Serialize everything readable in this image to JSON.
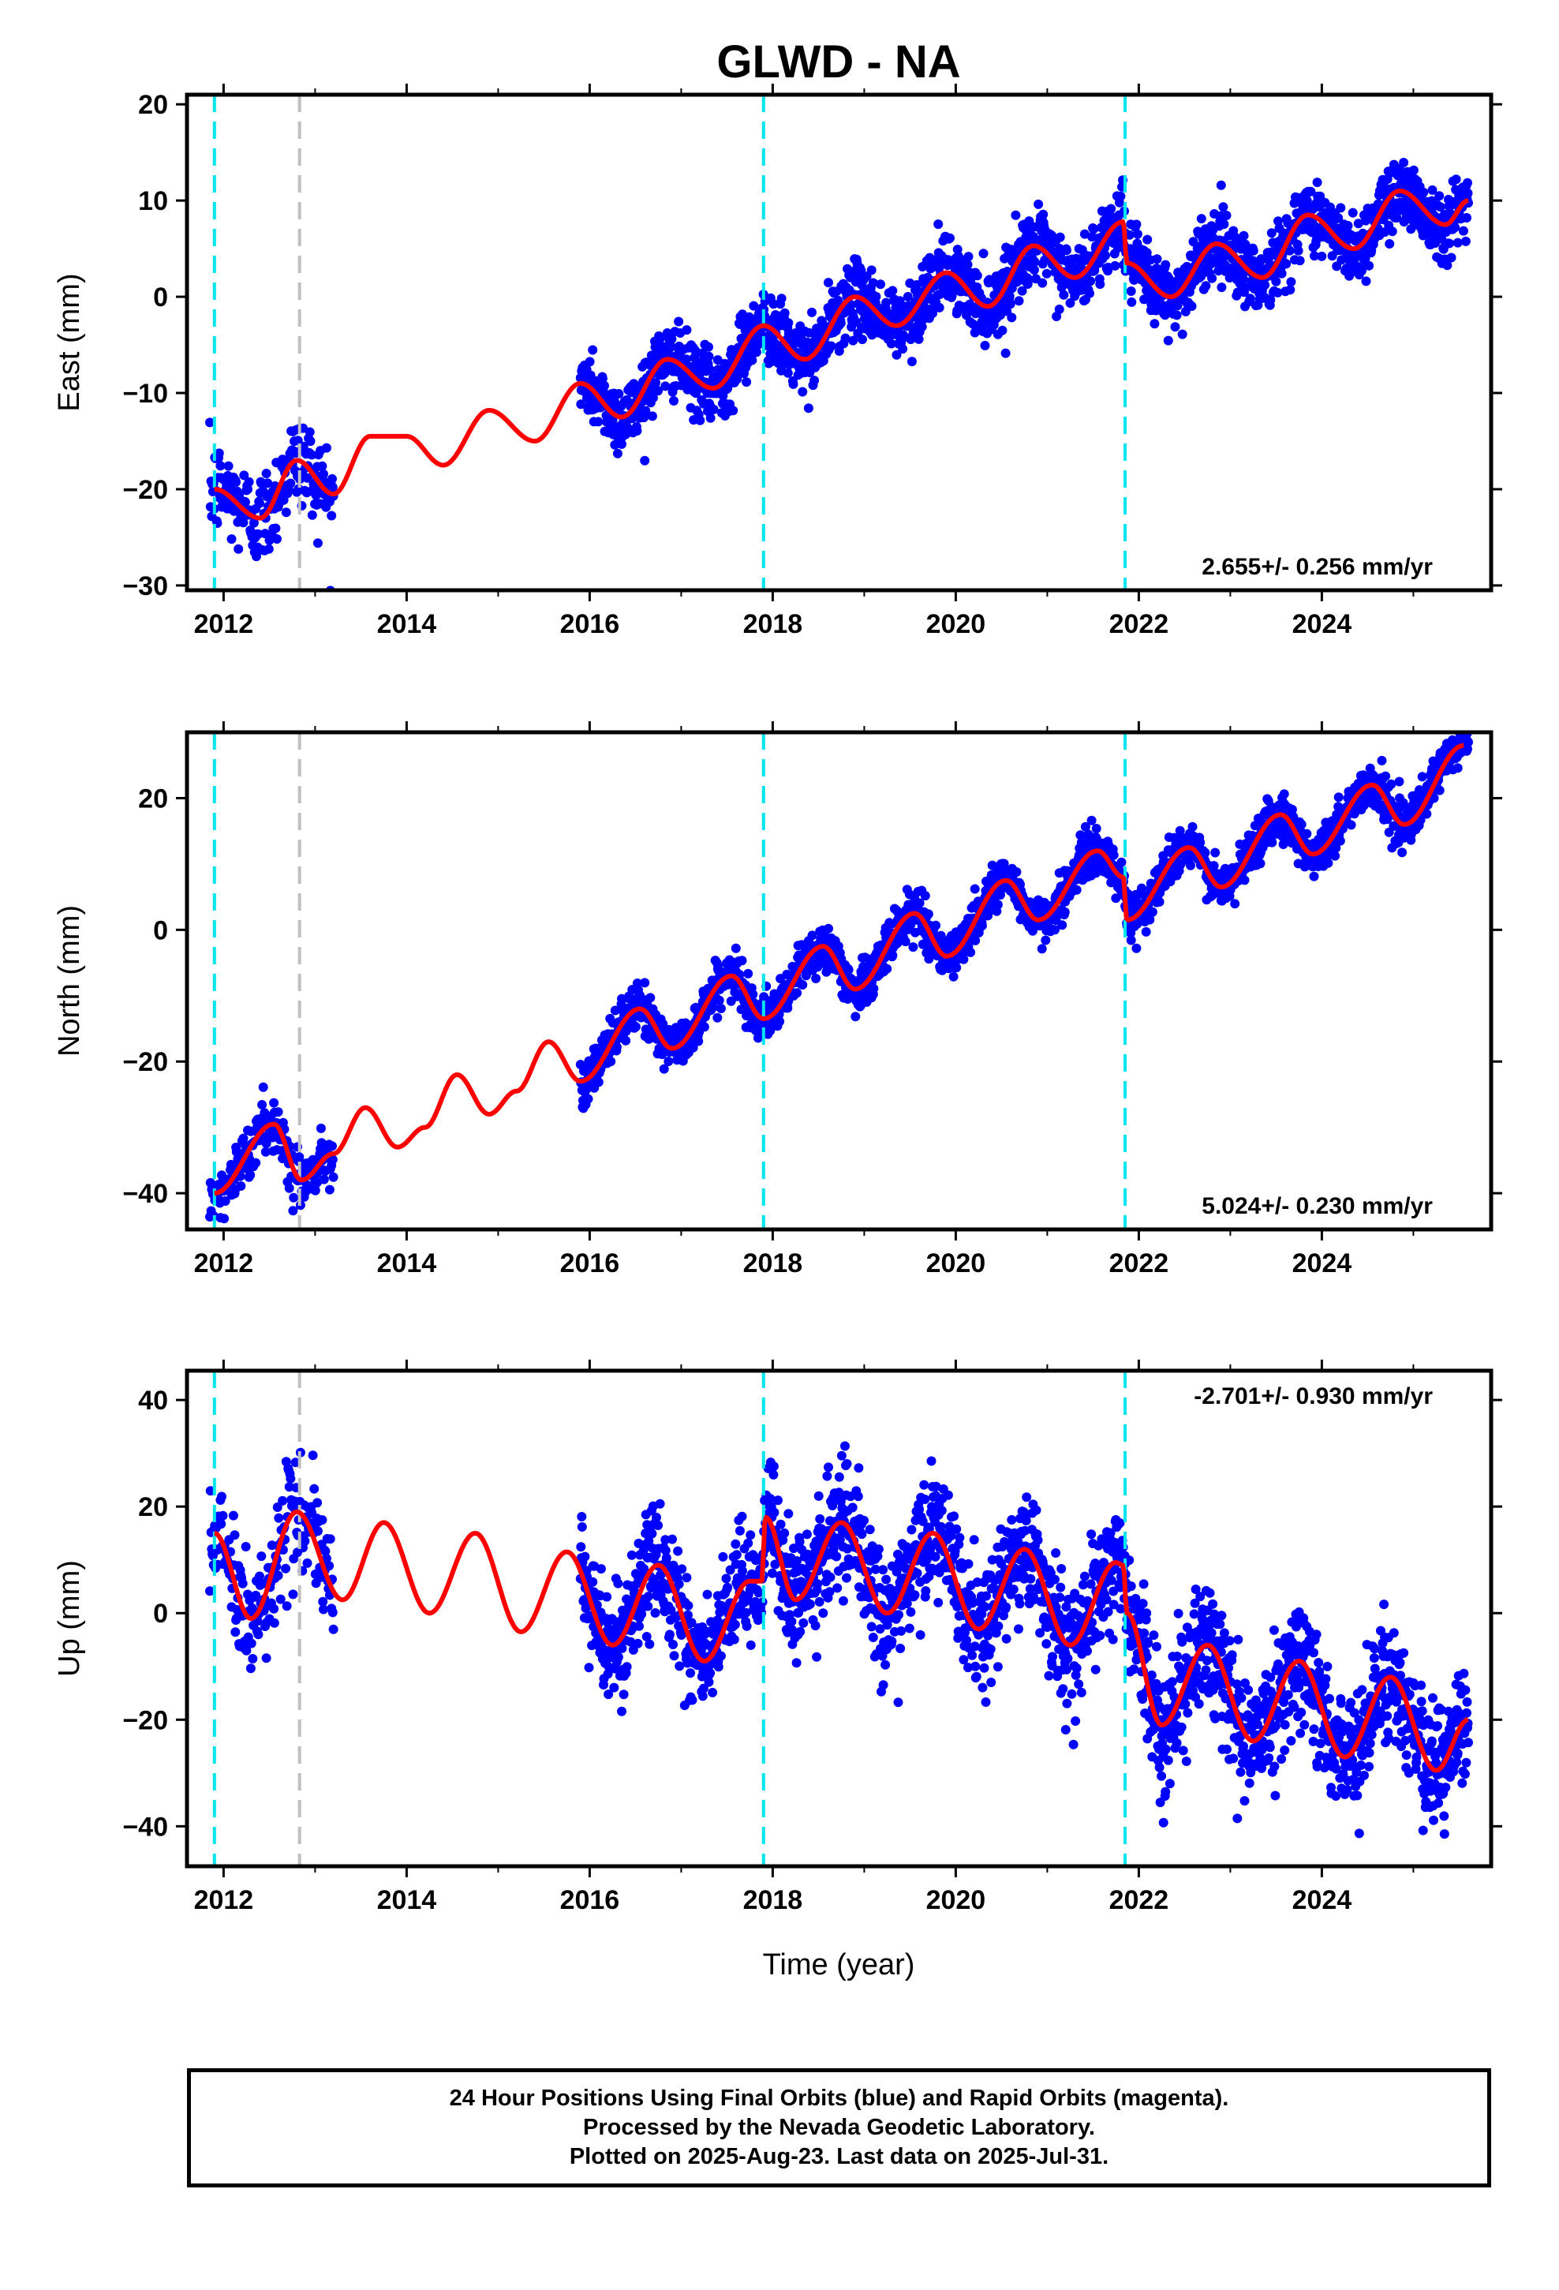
{
  "title": "GLWD - NA",
  "x_axis_label": "Time (year)",
  "footer": {
    "line1": "24 Hour Positions Using Final Orbits (blue) and Rapid Orbits (magenta).",
    "line2": "Processed by the Nevada Geodetic Laboratory.",
    "line3": "Plotted on 2025-Aug-23. Last data on 2025-Jul-31."
  },
  "colors": {
    "points": "#0000ff",
    "model": "#ff0000",
    "offset_line": "#00e5ee",
    "gap_line": "#c0c0c0",
    "frame": "#000000"
  },
  "chart_data": [
    {
      "type": "scatter",
      "component": "East",
      "ylabel": "East (mm)",
      "xlim": [
        2011.6,
        2025.85
      ],
      "ylim": [
        -30.5,
        21
      ],
      "x_ticks": [
        "2012",
        "2014",
        "2016",
        "2018",
        "2020",
        "2022",
        "2024"
      ],
      "y_ticks": [
        "−30",
        "−20",
        "−10",
        "0",
        "10",
        "20"
      ],
      "rate_label": "2.655+/- 0.256 mm/yr",
      "rate_position": "bottom-right",
      "offset_lines": [
        2011.9,
        2017.9,
        2021.85
      ],
      "gap_lines": [
        2012.83
      ],
      "model_keypoints": {
        "x": [
          2011.9,
          2012.4,
          2012.8,
          2013.2,
          2013.6,
          2014.0,
          2014.4,
          2014.9,
          2015.4,
          2015.9,
          2016.35,
          2016.85,
          2017.35,
          2017.9,
          2018.35,
          2018.9,
          2019.35,
          2019.9,
          2020.35,
          2020.85,
          2021.3,
          2021.83,
          2021.87,
          2022.35,
          2022.85,
          2023.35,
          2023.85,
          2024.35,
          2024.85,
          2025.35,
          2025.6
        ],
        "y": [
          -20,
          -23,
          -17,
          -20.5,
          -14.5,
          -14.5,
          -17.5,
          -11.8,
          -15,
          -9,
          -12.5,
          -6.5,
          -9.5,
          -3,
          -6.5,
          0,
          -3,
          2.5,
          -1,
          5.3,
          2,
          7.8,
          3.5,
          0,
          5.5,
          2,
          8.5,
          5,
          11,
          7.5,
          10
        ]
      },
      "data_segments": [
        {
          "x": [
            2011.85,
            2013.2
          ],
          "offset": 0,
          "noise": 2.5,
          "n": 200
        },
        {
          "x": [
            2015.9,
            2025.6
          ],
          "offset": 0,
          "noise": 1.8,
          "n": 2200
        }
      ]
    },
    {
      "type": "scatter",
      "component": "North",
      "ylabel": "North (mm)",
      "xlim": [
        2011.6,
        2025.85
      ],
      "ylim": [
        -45.5,
        30
      ],
      "x_ticks": [
        "2012",
        "2014",
        "2016",
        "2018",
        "2020",
        "2022",
        "2024"
      ],
      "y_ticks": [
        "−40",
        "−20",
        "0",
        "20"
      ],
      "rate_label": "5.024+/- 0.230 mm/yr",
      "rate_position": "bottom-right",
      "offset_lines": [
        2011.9,
        2017.9,
        2021.85
      ],
      "gap_lines": [
        2012.83
      ],
      "model_keypoints": {
        "x": [
          2011.9,
          2012.55,
          2012.85,
          2013.2,
          2013.55,
          2013.9,
          2014.2,
          2014.55,
          2014.9,
          2015.2,
          2015.55,
          2015.9,
          2016.55,
          2016.9,
          2017.55,
          2017.9,
          2018.55,
          2018.9,
          2019.55,
          2019.9,
          2020.55,
          2020.9,
          2021.55,
          2021.83,
          2021.87,
          2022.55,
          2022.9,
          2023.55,
          2023.9,
          2024.55,
          2024.9,
          2025.55
        ],
        "y": [
          -40,
          -29.5,
          -38,
          -34,
          -27,
          -33,
          -30,
          -22,
          -28,
          -24.5,
          -17,
          -23,
          -12,
          -18,
          -7,
          -13.5,
          -2.5,
          -9,
          2.5,
          -4,
          7.5,
          1.5,
          12,
          8,
          1.5,
          12.5,
          6.5,
          17.5,
          11.5,
          22,
          16,
          28
        ]
      },
      "data_segments": [
        {
          "x": [
            2011.85,
            2013.2
          ],
          "offset": 0,
          "noise": 2.0,
          "n": 200
        },
        {
          "x": [
            2015.9,
            2025.6
          ],
          "offset": 0,
          "noise": 1.7,
          "n": 2200
        }
      ]
    },
    {
      "type": "scatter",
      "component": "Up",
      "ylabel": "Up (mm)",
      "xlim": [
        2011.6,
        2025.85
      ],
      "ylim": [
        -47.5,
        45.5
      ],
      "x_ticks": [
        "2012",
        "2014",
        "2016",
        "2018",
        "2020",
        "2022",
        "2024"
      ],
      "y_ticks": [
        "−40",
        "−20",
        "0",
        "20",
        "40"
      ],
      "rate_label": "-2.701+/- 0.930 mm/yr",
      "rate_position": "top-right",
      "offset_lines": [
        2011.9,
        2017.9,
        2021.85
      ],
      "gap_lines": [
        2012.83
      ],
      "model_keypoints": {
        "x": [
          2011.9,
          2012.3,
          2012.8,
          2013.3,
          2013.75,
          2014.25,
          2014.75,
          2015.25,
          2015.75,
          2016.25,
          2016.75,
          2017.25,
          2017.75,
          2017.88,
          2017.92,
          2018.25,
          2018.75,
          2019.25,
          2019.75,
          2020.25,
          2020.75,
          2021.25,
          2021.75,
          2021.83,
          2021.87,
          2022.25,
          2022.75,
          2023.25,
          2023.75,
          2024.25,
          2024.75,
          2025.25,
          2025.6
        ],
        "y": [
          15,
          -1,
          19,
          2.5,
          17,
          0,
          15,
          -3.5,
          11.5,
          -6,
          9,
          -9,
          6,
          6,
          18,
          2.5,
          17,
          0,
          15,
          -3,
          12,
          -6,
          9.5,
          9,
          0,
          -21,
          -6,
          -24,
          -9,
          -27,
          -12,
          -29.5,
          -20
        ]
      },
      "data_segments": [
        {
          "x": [
            2011.85,
            2013.2
          ],
          "offset": 0,
          "noise": 5.0,
          "n": 200
        },
        {
          "x": [
            2015.9,
            2025.6
          ],
          "offset": 0,
          "noise": 5.5,
          "n": 2200
        }
      ]
    }
  ]
}
